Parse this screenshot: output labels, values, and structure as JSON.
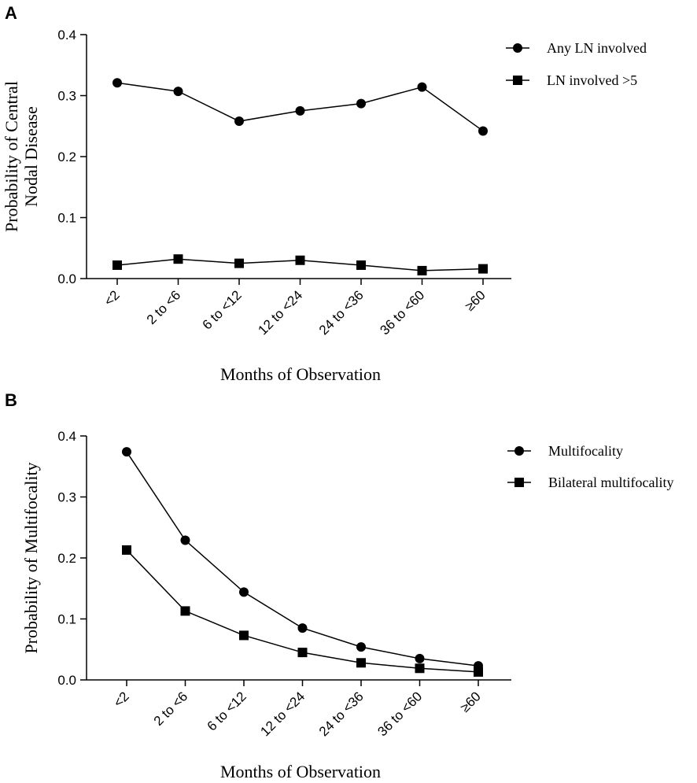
{
  "chart_data": [
    {
      "panel": "A",
      "type": "line",
      "categories": [
        "<2",
        "2 to <6",
        "6 to <12",
        "12 to <24",
        "24 to <36",
        "36 to <60",
        "≥60"
      ],
      "series": [
        {
          "name": "Any LN involved",
          "marker": "circle",
          "values": [
            0.321,
            0.307,
            0.258,
            0.275,
            0.287,
            0.314,
            0.242
          ]
        },
        {
          "name": "LN involved >5",
          "marker": "square",
          "values": [
            0.022,
            0.032,
            0.025,
            0.03,
            0.022,
            0.013,
            0.016
          ]
        }
      ],
      "xlabel": "Months of Observation",
      "ylabel_lines": [
        "Probability of Central",
        "Nodal Disease"
      ],
      "ylim": [
        0,
        0.4
      ],
      "yticks": [
        "0.0",
        "0.1",
        "0.2",
        "0.3",
        "0.4"
      ],
      "legend": "top-right"
    },
    {
      "panel": "B",
      "type": "line",
      "categories": [
        "<2",
        "2 to <6",
        "6 to <12",
        "12 to <24",
        "24 to <36",
        "36 to <60",
        "≥60"
      ],
      "series": [
        {
          "name": "Multifocality",
          "marker": "circle",
          "values": [
            0.374,
            0.229,
            0.144,
            0.085,
            0.054,
            0.035,
            0.023
          ]
        },
        {
          "name": "Bilateral multifocality",
          "marker": "square",
          "values": [
            0.213,
            0.113,
            0.073,
            0.045,
            0.028,
            0.019,
            0.013
          ]
        }
      ],
      "xlabel": "Months of Observation",
      "ylabel_lines": [
        "Probability of Multifocality"
      ],
      "ylim": [
        0,
        0.4
      ],
      "yticks": [
        "0.0",
        "0.1",
        "0.2",
        "0.3",
        "0.4"
      ],
      "legend": "top-right"
    }
  ]
}
